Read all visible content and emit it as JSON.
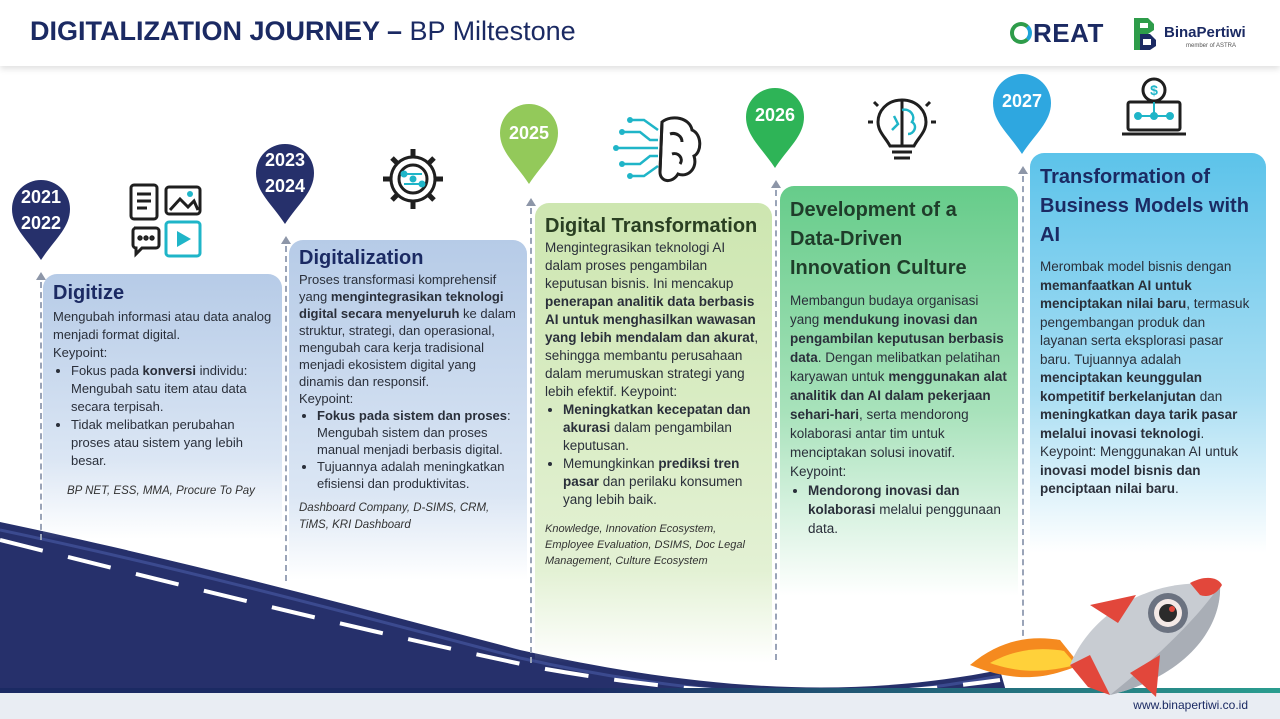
{
  "header": {
    "title_bold": "DIGITALIZATION JOURNEY –",
    "title_rest": " BP Miltestone",
    "logo_great": "REAT",
    "logo_bp_name": "BinaPertiwi",
    "logo_bp_sub": "member of ASTRA"
  },
  "pins": [
    {
      "line1": "2021",
      "line2": "2022",
      "color": "#26306b"
    },
    {
      "line1": "2023",
      "line2": "2024",
      "color": "#26306b"
    },
    {
      "line1": "2025",
      "line2": "",
      "color": "#93c95a"
    },
    {
      "line1": "2026",
      "line2": "",
      "color": "#2eb457"
    },
    {
      "line1": "2027",
      "line2": "",
      "color": "#2ea7e0"
    }
  ],
  "cards": {
    "digitize": {
      "title": "Digitize",
      "desc": "Mengubah informasi atau data analog menjadi format digital.",
      "keypoint": "Keypoint:",
      "b1_pre": "Fokus pada ",
      "b1_bold": "konversi",
      "b1_post": " individu: Mengubah satu item atau data secara terpisah.",
      "b2": "Tidak melibatkan perubahan proses atau sistem yang lebih besar.",
      "tools": "BP NET, ESS, MMA, Procure To Pay"
    },
    "digitalization": {
      "title": "Digitalization",
      "d_pre": "Proses transformasi komprehensif yang ",
      "d_bold": "mengintegrasikan teknologi digital secara menyeluruh",
      "d_post": " ke dalam struktur, strategi, dan operasional, mengubah cara kerja tradisional menjadi ekosistem digital yang dinamis dan responsif.",
      "keypoint": "Keypoint:",
      "b1_bold": "Fokus pada sistem dan proses",
      "b1_post": ": Mengubah sistem dan proses manual menjadi berbasis digital.",
      "b2": "Tujuannya adalah meningkatkan efisiensi dan produktivitas.",
      "tools": "Dashboard Company, D-SIMS, CRM, TiMS, KRI Dashboard"
    },
    "transformation": {
      "title": "Digital Transformation",
      "d_pre": "Mengintegrasikan teknologi AI dalam proses pengambilan keputusan bisnis. Ini mencakup ",
      "d_bold": "penerapan analitik data berbasis AI untuk menghasilkan wawasan yang lebih mendalam dan akurat",
      "d_post": ", sehingga membantu perusahaan dalam merumuskan strategi yang lebih efektif. Keypoint:",
      "b1_bold": "Meningkatkan kecepatan dan akurasi",
      "b1_post": " dalam pengambilan keputusan.",
      "b2_pre": "Memungkinkan ",
      "b2_bold": "prediksi tren pasar",
      "b2_post": " dan perilaku konsumen yang lebih baik.",
      "tools": "Knowledge, Innovation Ecosystem, Employee Evaluation, DSIMS, Doc Legal Management, Culture Ecosystem"
    },
    "datadriven": {
      "title": "Development of a Data-Driven Innovation Culture",
      "d_pre": "Membangun budaya organisasi yang ",
      "d_bold1": "mendukung inovasi dan pengambilan keputusan berbasis data",
      "d_mid": ". Dengan melibatkan pelatihan karyawan untuk ",
      "d_bold2": "menggunakan alat analitik dan AI dalam pekerjaan sehari-hari",
      "d_post": ", serta mendorong kolaborasi antar tim untuk menciptakan solusi inovatif.",
      "keypoint": "Keypoint:",
      "b1_bold": "Mendorong inovasi dan kolaborasi",
      "b1_post": " melalui penggunaan data."
    },
    "business": {
      "title": "Transformation of Business Models with AI",
      "d_pre": "Merombak model bisnis dengan ",
      "d_bold1": "memanfaatkan AI untuk menciptakan nilai baru",
      "d_mid1": ", termasuk pengembangan produk dan layanan serta eksplorasi pasar baru. Tujuannya adalah ",
      "d_bold2": "menciptakan keunggulan kompetitif berkelanjutan",
      "d_mid2": " dan ",
      "d_bold3": "meningkatkan daya tarik pasar melalui inovasi teknologi",
      "d_post": ".",
      "k_pre": "Keypoint: Menggunakan AI untuk ",
      "k_bold": "inovasi model bisnis dan penciptaan nilai baru",
      "k_post": "."
    }
  },
  "icons": [
    "documents-media-icon",
    "gear-network-icon",
    "ai-brain-icon",
    "lightbulb-brain-icon",
    "laptop-dollar-icon"
  ],
  "footer": {
    "url": "www.binapertiwi.co.id"
  },
  "colors": {
    "navy": "#1b2a63",
    "road": "#26306b",
    "light_green": "#93c95a",
    "green": "#2eb457",
    "blue": "#2ea7e0"
  }
}
